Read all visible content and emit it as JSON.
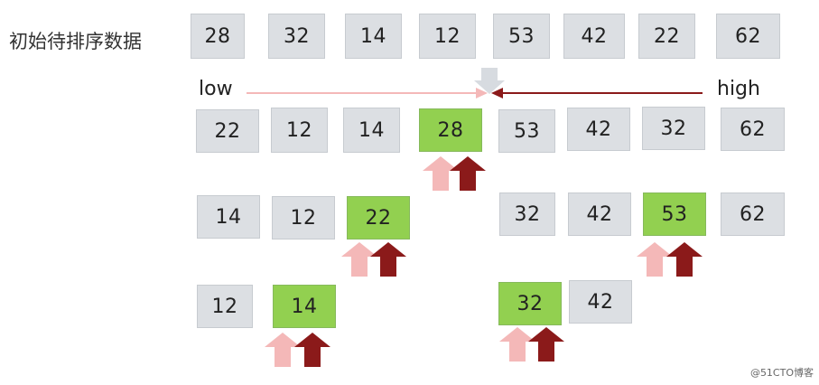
{
  "title": "初始待排序数据",
  "labels": {
    "low": "low",
    "high": "high"
  },
  "watermark": "@51CTO博客",
  "rows": {
    "initial": [
      "28",
      "32",
      "14",
      "12",
      "53",
      "42",
      "22",
      "62"
    ],
    "pass1": [
      "22",
      "12",
      "14",
      "28",
      "53",
      "42",
      "32",
      "62"
    ],
    "pass2_left": [
      "14",
      "12",
      "22"
    ],
    "pass2_right": [
      "32",
      "42",
      "53",
      "62"
    ],
    "pass3_left": [
      "12",
      "14"
    ],
    "pass3_right": [
      "32",
      "42"
    ]
  },
  "pivots": {
    "pass1": "28",
    "pass2_left": "22",
    "pass2_right": "53",
    "pass3_left": "14",
    "pass3_right": "32"
  },
  "colors": {
    "box_fill": "#dcdfe3",
    "pivot_fill": "#92d050",
    "low_arrow": "#f4b8b8",
    "high_arrow": "#8b1a1a",
    "down_arrow": "#d7dbe0"
  }
}
